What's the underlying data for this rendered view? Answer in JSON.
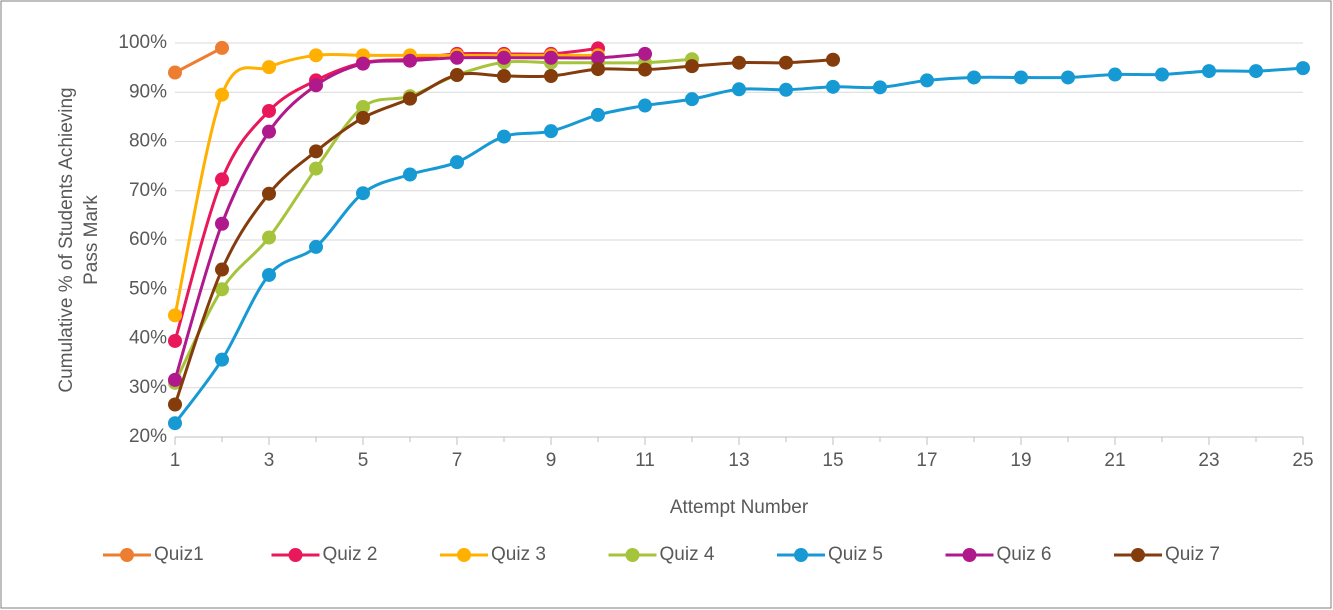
{
  "chart_data": {
    "type": "line",
    "xlabel": "Attempt Number",
    "ylabel": [
      "Cumulative % of Students  Achieving",
      "Pass Mark"
    ],
    "x": [
      1,
      2,
      3,
      4,
      5,
      6,
      7,
      8,
      9,
      10,
      11,
      12,
      13,
      14,
      15,
      16,
      17,
      18,
      19,
      20,
      21,
      22,
      23,
      24,
      25
    ],
    "xlim": [
      1,
      25
    ],
    "xticks": [
      1,
      3,
      5,
      7,
      9,
      11,
      13,
      15,
      17,
      19,
      21,
      23,
      25
    ],
    "ylim": [
      20,
      100
    ],
    "yticks": [
      {
        "value": 20,
        "label": "20%"
      },
      {
        "value": 30,
        "label": "30%"
      },
      {
        "value": 40,
        "label": "40%"
      },
      {
        "value": 50,
        "label": "50%"
      },
      {
        "value": 60,
        "label": "60%"
      },
      {
        "value": 70,
        "label": "70%"
      },
      {
        "value": 80,
        "label": "80%"
      },
      {
        "value": 90,
        "label": "90%"
      },
      {
        "value": 100,
        "label": "100%"
      }
    ],
    "grid": true,
    "legend": "bottom",
    "series": [
      {
        "name": "Quiz1",
        "color": "#ed7d31",
        "values": [
          94,
          99,
          null,
          null,
          null,
          null,
          null,
          null,
          null,
          null,
          null,
          null,
          null,
          null,
          null,
          null,
          null,
          null,
          null,
          null,
          null,
          null,
          null,
          null,
          null
        ]
      },
      {
        "name": "Quiz 2",
        "color": "#e8185a",
        "values": [
          39.5,
          72.3,
          86.2,
          92.4,
          96,
          96.7,
          97.8,
          97.8,
          97.8,
          98.9,
          null,
          null,
          null,
          null,
          null,
          null,
          null,
          null,
          null,
          null,
          null,
          null,
          null,
          null,
          null
        ]
      },
      {
        "name": "Quiz 3",
        "color": "#ffb000",
        "values": [
          44.7,
          89.5,
          95.1,
          97.5,
          97.5,
          97.5,
          97.5,
          97.5,
          97.5,
          97.5,
          null,
          null,
          null,
          null,
          null,
          null,
          null,
          null,
          null,
          null,
          null,
          null,
          null,
          null,
          null
        ]
      },
      {
        "name": "Quiz 4",
        "color": "#a5c33b",
        "values": [
          31,
          50,
          60.5,
          74.5,
          87,
          89.2,
          93.5,
          96.1,
          96,
          96,
          96,
          96.7,
          null,
          null,
          null,
          null,
          null,
          null,
          null,
          null,
          null,
          null,
          null,
          null,
          null
        ]
      },
      {
        "name": "Quiz 5",
        "color": "#1799d4",
        "values": [
          22.8,
          35.7,
          52.9,
          58.6,
          69.5,
          73.3,
          75.8,
          81,
          82.1,
          85.4,
          87.3,
          88.6,
          90.6,
          90.5,
          91.1,
          91,
          92.4,
          93,
          93,
          93,
          93.6,
          93.6,
          94.3,
          94.3,
          94.9
        ]
      },
      {
        "name": "Quiz 6",
        "color": "#b0198c",
        "values": [
          31.6,
          63.3,
          82,
          91.4,
          95.8,
          96.4,
          97,
          97,
          97,
          97,
          97.8,
          null,
          null,
          null,
          null,
          null,
          null,
          null,
          null,
          null,
          null,
          null,
          null,
          null,
          null
        ]
      },
      {
        "name": "Quiz 7",
        "color": "#843c0c",
        "values": [
          26.6,
          54,
          69.4,
          78,
          84.8,
          88.7,
          93.5,
          93.3,
          93.3,
          94.7,
          94.6,
          95.3,
          96,
          96,
          96.6,
          null,
          null,
          null,
          null,
          null,
          null,
          null,
          null,
          null,
          null
        ]
      }
    ]
  }
}
